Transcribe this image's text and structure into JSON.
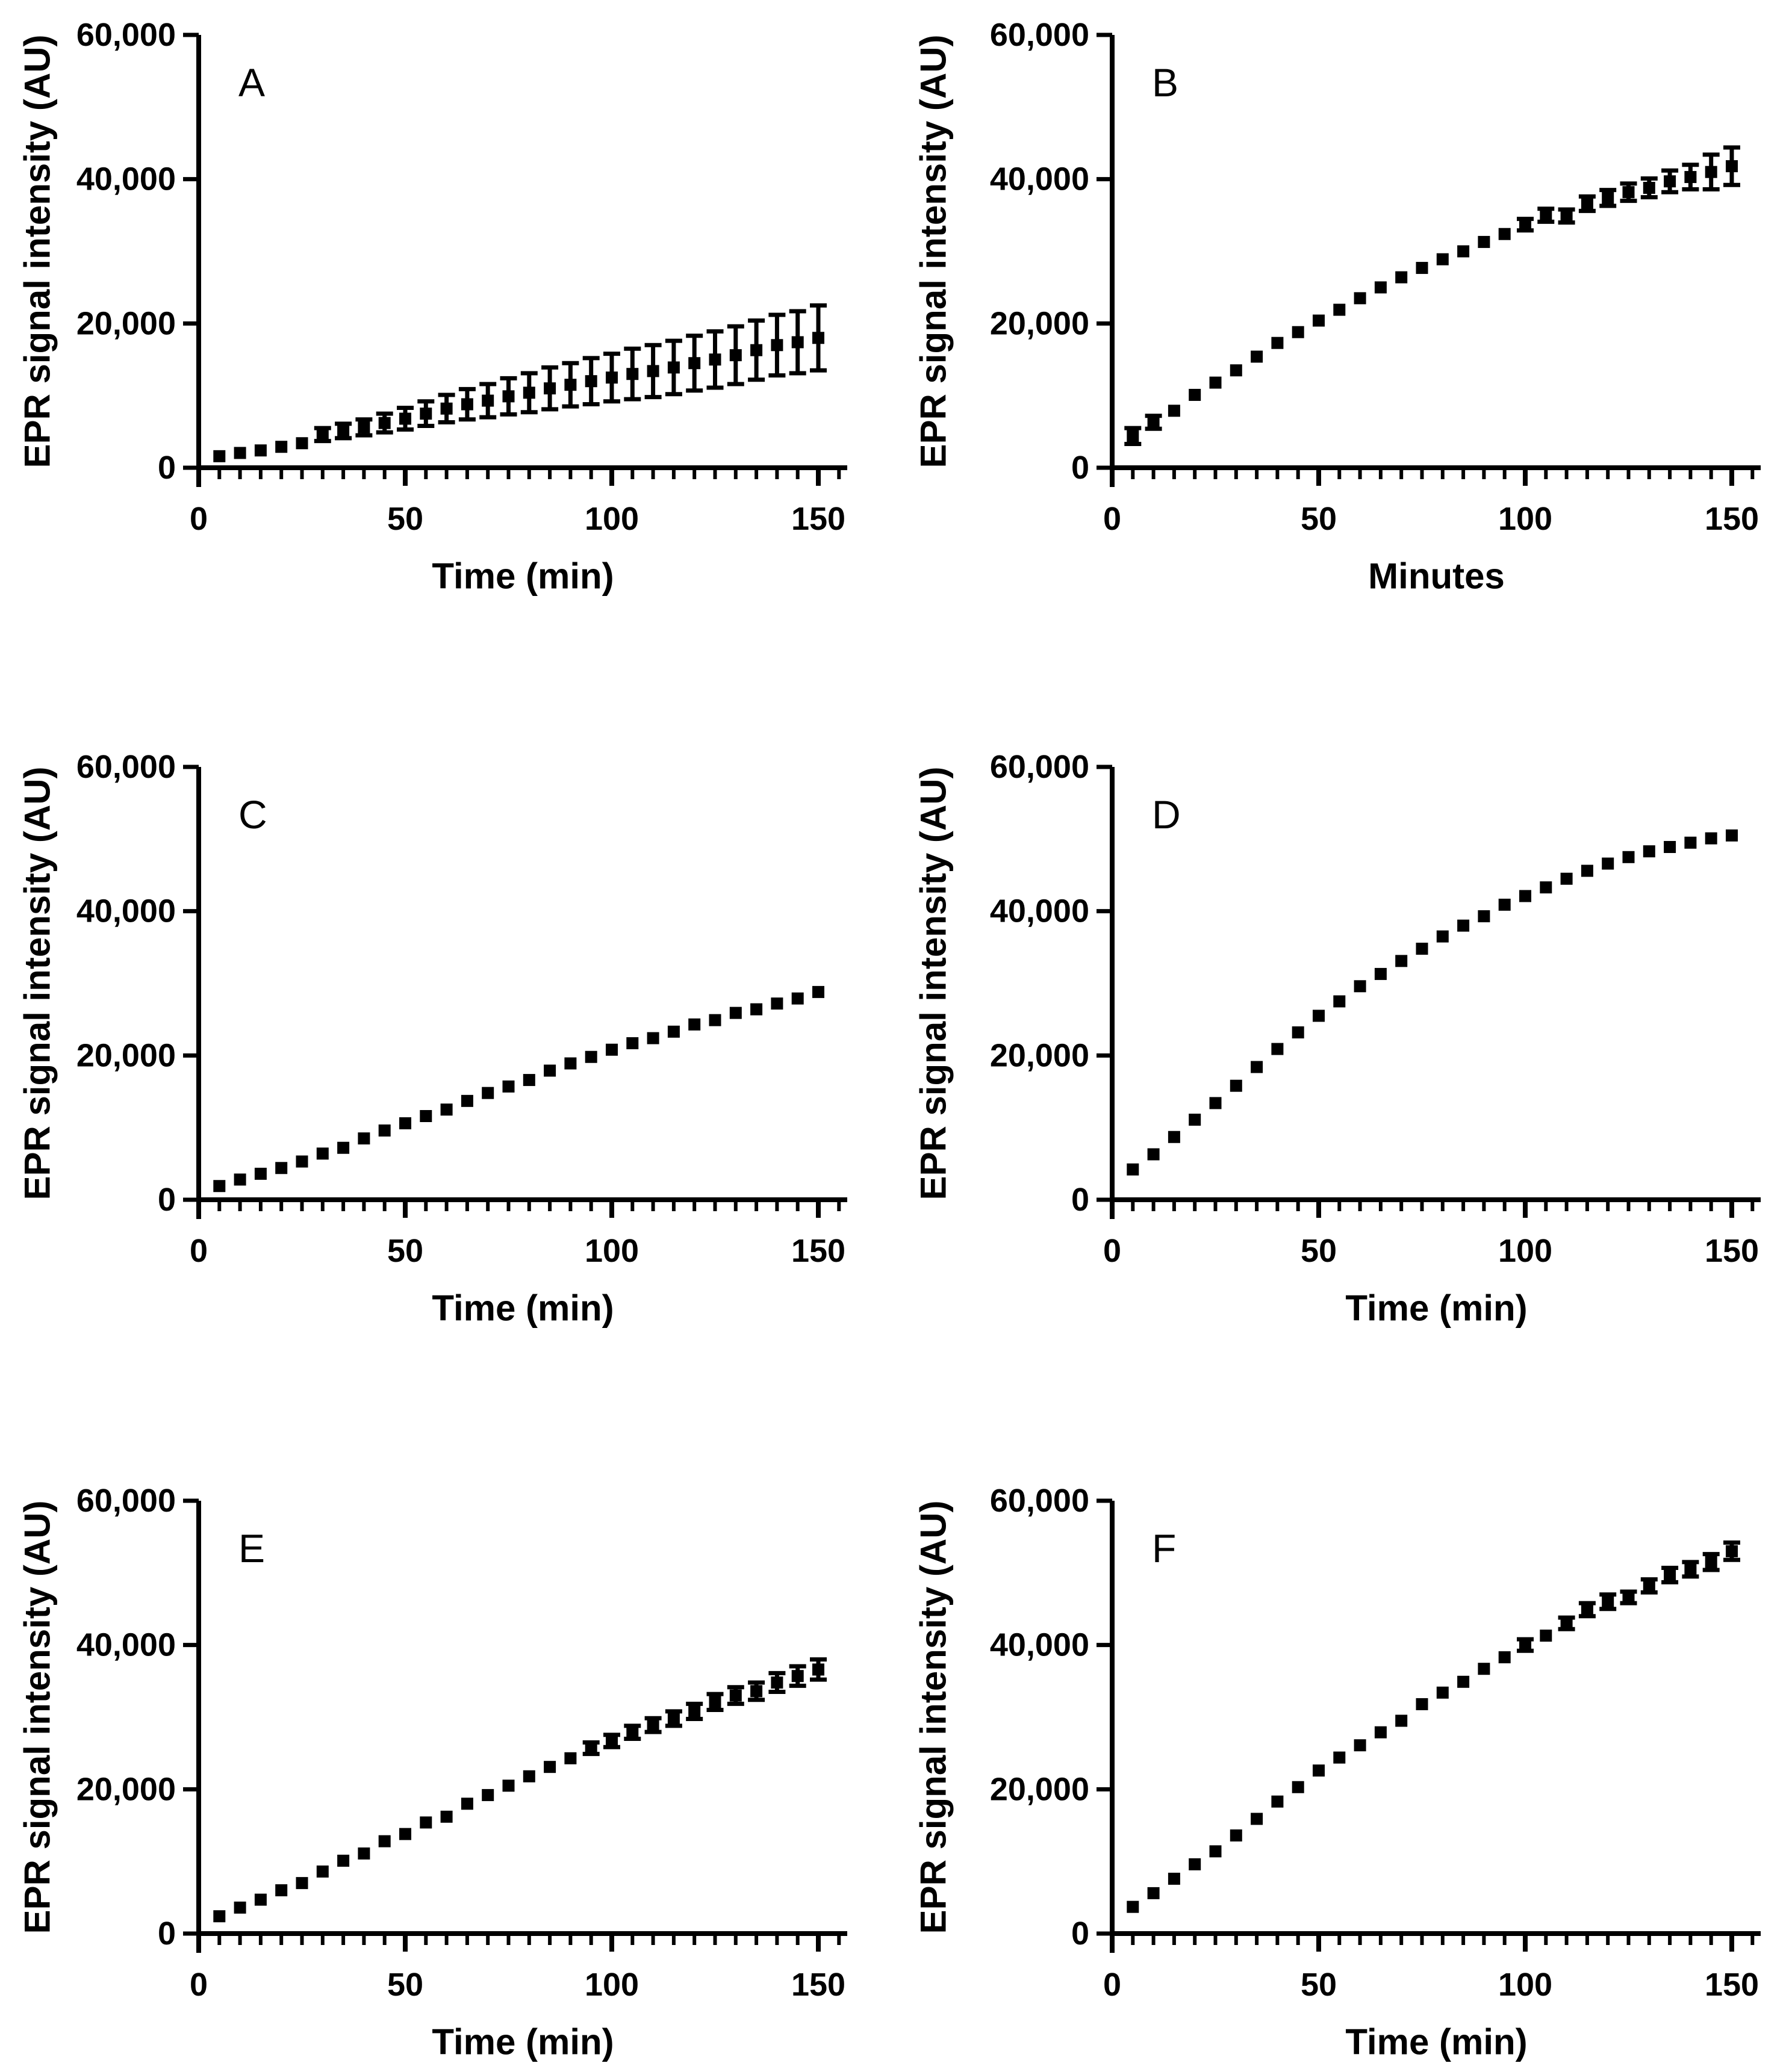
{
  "figure": {
    "background": "#ffffff",
    "ink": "#000000",
    "panels": [
      "A",
      "B",
      "C",
      "D",
      "E",
      "F"
    ]
  },
  "axes_common": {
    "xlim": [
      0,
      157
    ],
    "ylim": [
      0,
      60000
    ],
    "xticks": {
      "values": [
        0,
        50,
        100,
        150
      ],
      "labels": [
        "0",
        "50",
        "100",
        "150"
      ],
      "minor_step": 5,
      "minor_max": 155
    },
    "yticks": {
      "values": [
        0,
        20000,
        40000,
        60000
      ],
      "labels": [
        "0",
        "20,000",
        "40,000",
        "60,000"
      ]
    },
    "grid": false,
    "legend": null
  },
  "chart_data": [
    {
      "panel": "A",
      "type": "scatter",
      "marker": "square",
      "color": "#000000",
      "xlabel": "Time (min)",
      "ylabel": "EPR signal intensity (AU)",
      "x": [
        5,
        10,
        15,
        20,
        25,
        30,
        35,
        40,
        45,
        50,
        55,
        60,
        65,
        70,
        75,
        80,
        85,
        90,
        95,
        100,
        105,
        110,
        115,
        120,
        125,
        130,
        135,
        140,
        145,
        150
      ],
      "y": [
        1600,
        2050,
        2400,
        2900,
        3400,
        4600,
        5100,
        5600,
        6200,
        6800,
        7500,
        8200,
        8800,
        9300,
        9900,
        10400,
        11000,
        11500,
        12000,
        12500,
        13000,
        13400,
        13900,
        14500,
        15000,
        15600,
        16300,
        17000,
        17400,
        18000
      ],
      "yerr": [
        150,
        200,
        250,
        300,
        400,
        900,
        1000,
        1100,
        1300,
        1500,
        1700,
        1900,
        2100,
        2300,
        2500,
        2700,
        2900,
        3000,
        3200,
        3300,
        3500,
        3600,
        3700,
        3800,
        3900,
        4000,
        4100,
        4200,
        4300,
        4500
      ]
    },
    {
      "panel": "B",
      "type": "scatter",
      "marker": "square",
      "color": "#000000",
      "xlabel": "Minutes",
      "ylabel": "EPR signal intensity (AU)",
      "x": [
        5,
        10,
        15,
        20,
        25,
        30,
        35,
        40,
        45,
        50,
        55,
        60,
        65,
        70,
        75,
        80,
        85,
        90,
        95,
        100,
        105,
        110,
        115,
        120,
        125,
        130,
        135,
        140,
        145,
        150
      ],
      "y": [
        4400,
        6300,
        7900,
        10100,
        11800,
        13500,
        15400,
        17300,
        18800,
        20400,
        21900,
        23500,
        25000,
        26400,
        27700,
        28900,
        30000,
        31300,
        32400,
        33700,
        35000,
        34900,
        36600,
        37400,
        38200,
        38800,
        39700,
        40300,
        41000,
        41800
      ],
      "yerr": [
        1100,
        900,
        700,
        600,
        500,
        450,
        400,
        400,
        400,
        400,
        400,
        400,
        420,
        450,
        480,
        500,
        550,
        600,
        700,
        800,
        900,
        900,
        1000,
        1100,
        1200,
        1300,
        1500,
        1700,
        2400,
        2600
      ]
    },
    {
      "panel": "C",
      "type": "scatter",
      "marker": "square",
      "color": "#000000",
      "xlabel": "Time (min)",
      "ylabel": "EPR signal intensity (AU)",
      "x": [
        5,
        10,
        15,
        20,
        25,
        30,
        35,
        40,
        45,
        50,
        55,
        60,
        65,
        70,
        75,
        80,
        85,
        90,
        95,
        100,
        105,
        110,
        115,
        120,
        125,
        130,
        135,
        140,
        145,
        150
      ],
      "y": [
        1900,
        2800,
        3600,
        4400,
        5300,
        6400,
        7200,
        8500,
        9600,
        10600,
        11600,
        12500,
        13700,
        14800,
        15700,
        16600,
        17900,
        18900,
        19800,
        20800,
        21700,
        22400,
        23300,
        24300,
        24900,
        25900,
        26400,
        27200,
        27900,
        28800
      ],
      "yerr": [
        250,
        250,
        250,
        250,
        250,
        250,
        250,
        250,
        250,
        250,
        250,
        250,
        250,
        250,
        250,
        250,
        250,
        250,
        250,
        250,
        250,
        250,
        250,
        250,
        250,
        250,
        250,
        250,
        250,
        250
      ]
    },
    {
      "panel": "D",
      "type": "scatter",
      "marker": "square",
      "color": "#000000",
      "xlabel": "Time (min)",
      "ylabel": "EPR signal intensity (AU)",
      "x": [
        5,
        10,
        15,
        20,
        25,
        30,
        35,
        40,
        45,
        50,
        55,
        60,
        65,
        70,
        75,
        80,
        85,
        90,
        95,
        100,
        105,
        110,
        115,
        120,
        125,
        130,
        135,
        140,
        145,
        150
      ],
      "y": [
        4200,
        6300,
        8700,
        11100,
        13400,
        15800,
        18400,
        20900,
        23200,
        25500,
        27500,
        29600,
        31300,
        33100,
        34800,
        36500,
        38000,
        39300,
        40900,
        42100,
        43300,
        44500,
        45600,
        46600,
        47500,
        48300,
        48900,
        49500,
        50100,
        50500
      ],
      "yerr": [
        150,
        150,
        150,
        150,
        150,
        150,
        150,
        150,
        150,
        150,
        150,
        150,
        150,
        150,
        150,
        150,
        150,
        150,
        150,
        150,
        150,
        150,
        150,
        150,
        150,
        150,
        150,
        150,
        150,
        150
      ]
    },
    {
      "panel": "E",
      "type": "scatter",
      "marker": "square",
      "color": "#000000",
      "xlabel": "Time (min)",
      "ylabel": "EPR signal intensity (AU)",
      "x": [
        5,
        10,
        15,
        20,
        25,
        30,
        35,
        40,
        45,
        50,
        55,
        60,
        65,
        70,
        75,
        80,
        85,
        90,
        95,
        100,
        105,
        110,
        115,
        120,
        125,
        130,
        135,
        140,
        145,
        150
      ],
      "y": [
        2400,
        3600,
        4700,
        6000,
        7000,
        8600,
        10100,
        11100,
        12800,
        13800,
        15400,
        16200,
        18000,
        19200,
        20500,
        21800,
        23100,
        24300,
        25700,
        26700,
        27900,
        28900,
        29800,
        30800,
        32100,
        33000,
        33600,
        34800,
        35700,
        36600
      ],
      "yerr": [
        150,
        150,
        150,
        150,
        150,
        200,
        200,
        200,
        250,
        250,
        250,
        300,
        300,
        300,
        400,
        450,
        500,
        600,
        800,
        850,
        900,
        950,
        1000,
        1050,
        1100,
        1150,
        1200,
        1300,
        1350,
        1400
      ]
    },
    {
      "panel": "F",
      "type": "scatter",
      "marker": "square",
      "color": "#000000",
      "xlabel": "Time (min)",
      "ylabel": "EPR signal intensity (AU)",
      "x": [
        5,
        10,
        15,
        20,
        25,
        30,
        35,
        40,
        45,
        50,
        55,
        60,
        65,
        70,
        75,
        80,
        85,
        90,
        95,
        100,
        105,
        110,
        115,
        120,
        125,
        130,
        135,
        140,
        145,
        150
      ],
      "y": [
        3700,
        5600,
        7600,
        9600,
        11400,
        13600,
        15900,
        18300,
        20300,
        22600,
        24400,
        26100,
        27900,
        29500,
        31800,
        33400,
        34900,
        36700,
        38300,
        40000,
        41300,
        43000,
        44900,
        46000,
        46600,
        48200,
        49700,
        50500,
        51500,
        53000
      ],
      "yerr": [
        150,
        150,
        150,
        150,
        150,
        150,
        150,
        150,
        150,
        150,
        150,
        150,
        150,
        250,
        300,
        350,
        400,
        500,
        600,
        800,
        700,
        800,
        900,
        1000,
        800,
        900,
        1000,
        1000,
        1100,
        1200
      ]
    }
  ]
}
